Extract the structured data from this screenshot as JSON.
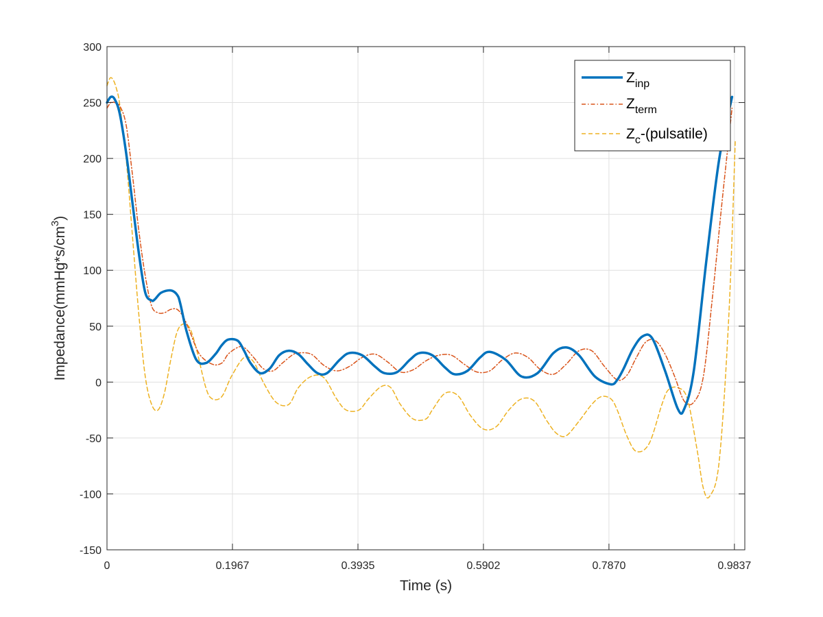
{
  "chart_data": {
    "type": "line",
    "xlabel": "Time (s)",
    "ylabel": "Impedance(mmHg*s/cm",
    "ylabel_sup": "3",
    "ylabel_close": ")",
    "xlim": [
      0,
      1.0
    ],
    "ylim": [
      -150,
      300
    ],
    "xticks": [
      0,
      0.1967,
      0.3935,
      0.5902,
      0.787,
      0.9837
    ],
    "xtick_labels": [
      "0",
      "0.1967",
      "0.3935",
      "0.5902",
      "0.7870",
      "0.9837"
    ],
    "yticks": [
      -150,
      -100,
      -50,
      0,
      50,
      100,
      150,
      200,
      250,
      300
    ],
    "ytick_labels": [
      "-150",
      "-100",
      "-50",
      "0",
      "50",
      "100",
      "150",
      "200",
      "250",
      "300"
    ],
    "grid": true,
    "legend_position": "top-right",
    "series": [
      {
        "name": "Z",
        "name_sub": "inp",
        "name_suffix": "",
        "color": "#0072BD",
        "style": "solid",
        "x": [
          0.0,
          0.006,
          0.012,
          0.02,
          0.03,
          0.04,
          0.05,
          0.06,
          0.07,
          0.075,
          0.085,
          0.1,
          0.11,
          0.115,
          0.125,
          0.14,
          0.155,
          0.17,
          0.18,
          0.19,
          0.205,
          0.215,
          0.225,
          0.24,
          0.255,
          0.27,
          0.285,
          0.3,
          0.315,
          0.33,
          0.345,
          0.365,
          0.38,
          0.4,
          0.42,
          0.435,
          0.455,
          0.475,
          0.49,
          0.51,
          0.53,
          0.545,
          0.565,
          0.585,
          0.6,
          0.625,
          0.65,
          0.675,
          0.7,
          0.72,
          0.74,
          0.765,
          0.79,
          0.8,
          0.81,
          0.825,
          0.84,
          0.855,
          0.875,
          0.895,
          0.905,
          0.92,
          0.94,
          0.96,
          0.98
        ],
        "y": [
          250,
          255,
          253,
          240,
          205,
          160,
          115,
          80,
          73,
          74,
          80,
          82,
          78,
          70,
          45,
          20,
          17,
          25,
          33,
          38,
          37,
          28,
          17,
          8,
          12,
          24,
          28,
          25,
          16,
          8,
          8,
          20,
          26,
          24,
          14,
          8,
          9,
          20,
          26,
          24,
          13,
          7,
          10,
          22,
          27,
          20,
          5,
          8,
          26,
          31,
          24,
          5,
          -2,
          2,
          12,
          30,
          41,
          39,
          10,
          -24,
          -24,
          10,
          110,
          200,
          255
        ]
      },
      {
        "name": "Z",
        "name_sub": "term",
        "name_suffix": "",
        "color": "#D95319",
        "style": "dashdot",
        "x": [
          0.0,
          0.006,
          0.012,
          0.02,
          0.03,
          0.04,
          0.05,
          0.06,
          0.07,
          0.08,
          0.09,
          0.1,
          0.11,
          0.12,
          0.13,
          0.145,
          0.165,
          0.18,
          0.19,
          0.205,
          0.215,
          0.23,
          0.245,
          0.26,
          0.275,
          0.29,
          0.3,
          0.32,
          0.34,
          0.36,
          0.38,
          0.4,
          0.42,
          0.44,
          0.46,
          0.48,
          0.5,
          0.52,
          0.54,
          0.56,
          0.58,
          0.6,
          0.62,
          0.64,
          0.66,
          0.68,
          0.7,
          0.72,
          0.74,
          0.76,
          0.78,
          0.8,
          0.815,
          0.83,
          0.845,
          0.86,
          0.875,
          0.89,
          0.905,
          0.92,
          0.935,
          0.95,
          0.965,
          0.98
        ],
        "y": [
          245,
          250,
          250,
          247,
          230,
          185,
          135,
          95,
          68,
          62,
          62,
          65,
          65,
          58,
          45,
          25,
          16,
          17,
          25,
          31,
          31,
          22,
          12,
          10,
          17,
          24,
          26,
          25,
          15,
          10,
          14,
          22,
          25,
          18,
          9,
          11,
          19,
          24,
          24,
          16,
          9,
          10,
          20,
          26,
          22,
          11,
          7,
          16,
          28,
          28,
          14,
          2,
          6,
          22,
          36,
          37,
          25,
          5,
          -17,
          -18,
          5,
          80,
          165,
          245
        ]
      },
      {
        "name": "Z",
        "name_sub": "c",
        "name_suffix": "-(pulsatile)",
        "color": "#EDB120",
        "style": "dashed",
        "x": [
          0.0,
          0.005,
          0.01,
          0.015,
          0.02,
          0.03,
          0.04,
          0.05,
          0.06,
          0.07,
          0.08,
          0.09,
          0.1,
          0.11,
          0.12,
          0.13,
          0.14,
          0.155,
          0.165,
          0.18,
          0.195,
          0.215,
          0.23,
          0.245,
          0.265,
          0.285,
          0.3,
          0.32,
          0.34,
          0.36,
          0.375,
          0.395,
          0.41,
          0.43,
          0.445,
          0.46,
          0.48,
          0.5,
          0.51,
          0.53,
          0.55,
          0.57,
          0.59,
          0.61,
          0.63,
          0.65,
          0.67,
          0.69,
          0.705,
          0.72,
          0.74,
          0.76,
          0.775,
          0.79,
          0.8,
          0.815,
          0.83,
          0.85,
          0.87,
          0.88,
          0.895,
          0.91,
          0.925,
          0.935,
          0.945,
          0.96,
          0.975,
          0.985
        ],
        "y": [
          265,
          272,
          270,
          262,
          248,
          200,
          130,
          60,
          5,
          -20,
          -25,
          -10,
          20,
          45,
          52,
          48,
          30,
          -5,
          -15,
          -13,
          5,
          22,
          18,
          0,
          -18,
          -20,
          -5,
          5,
          4,
          -15,
          -25,
          -25,
          -15,
          -4,
          -5,
          -20,
          -33,
          -33,
          -25,
          -10,
          -12,
          -30,
          -42,
          -40,
          -25,
          -15,
          -17,
          -35,
          -46,
          -48,
          -35,
          -20,
          -13,
          -15,
          -25,
          -48,
          -62,
          -55,
          -20,
          -7,
          -5,
          -15,
          -60,
          -95,
          -102,
          -70,
          60,
          215
        ]
      }
    ]
  }
}
